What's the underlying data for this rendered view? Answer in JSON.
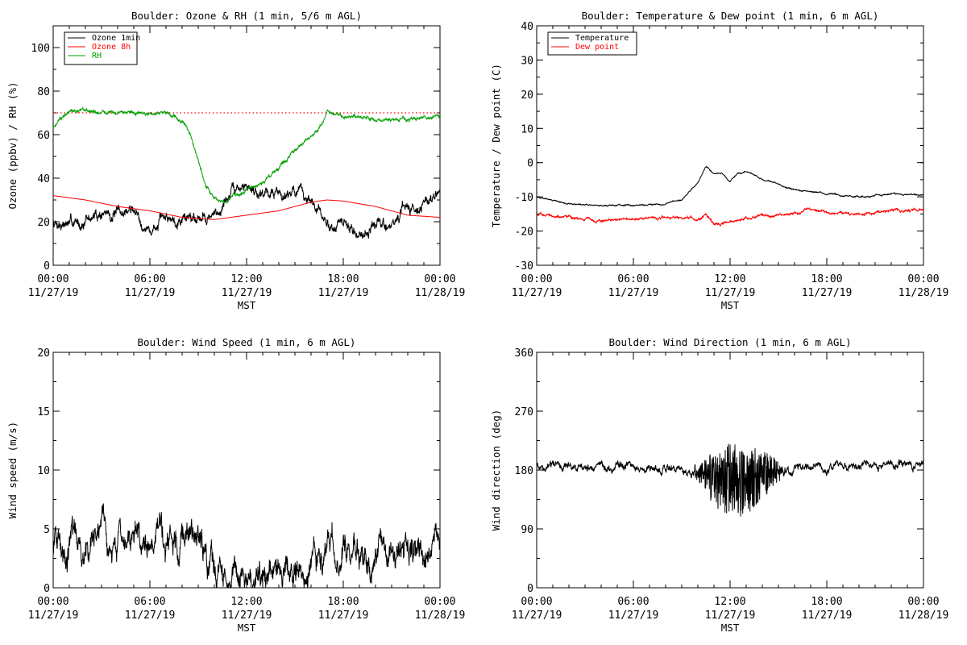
{
  "chart_data": [
    {
      "type": "line",
      "title": "Boulder: Ozone & RH (1 min, 5/6 m AGL)",
      "xlabel": "MST",
      "ylabel": "Ozone (ppbv) / RH (%)",
      "xlim": [
        "11/27/19 00:00",
        "11/28/19 00:00"
      ],
      "ylim": [
        0,
        110
      ],
      "yticks": [
        "0",
        "20",
        "40",
        "60",
        "80",
        "100"
      ],
      "xticks": [
        {
          "time": "00:00",
          "date": "11/27/19"
        },
        {
          "time": "06:00",
          "date": "11/27/19"
        },
        {
          "time": "12:00",
          "date": "11/27/19"
        },
        {
          "time": "18:00",
          "date": "11/27/19"
        },
        {
          "time": "00:00",
          "date": "11/28/19"
        }
      ],
      "legend_position": "top-left",
      "reference_line": {
        "y": 70,
        "style": "dotted",
        "color": "#ff0000"
      },
      "series": [
        {
          "name": "Ozone 1min",
          "color": "#000000",
          "noise": 2.5,
          "x": [
            "00:00",
            "01:00",
            "02:00",
            "03:00",
            "04:00",
            "05:00",
            "06:00",
            "07:00",
            "08:00",
            "09:00",
            "10:00",
            "11:00",
            "12:00",
            "13:00",
            "14:00",
            "15:00",
            "16:00",
            "17:00",
            "18:00",
            "19:00",
            "20:00",
            "21:00",
            "22:00",
            "23:00",
            "24:00"
          ],
          "y": [
            20,
            19,
            20,
            24,
            23,
            26,
            15,
            22,
            22,
            23,
            22,
            33,
            36,
            34,
            33,
            35,
            29,
            18,
            19,
            14,
            19,
            18,
            27,
            28,
            33
          ]
        },
        {
          "name": "Ozone 8h",
          "color": "#ff0000",
          "noise": 0,
          "x": [
            "00:00",
            "02:00",
            "04:00",
            "06:00",
            "08:00",
            "10:00",
            "12:00",
            "14:00",
            "16:00",
            "17:00",
            "18:00",
            "20:00",
            "22:00",
            "24:00"
          ],
          "y": [
            32,
            30,
            27,
            25,
            22,
            21,
            23,
            25,
            29,
            30,
            29.5,
            27,
            23,
            22
          ]
        },
        {
          "name": "RH",
          "color": "#00a000",
          "noise": 0.8,
          "x": [
            "00:00",
            "01:00",
            "02:00",
            "04:00",
            "06:00",
            "07:00",
            "07:30",
            "08:00",
            "08:30",
            "09:00",
            "09:30",
            "10:00",
            "10:30",
            "11:00",
            "11:30",
            "12:00",
            "13:00",
            "14:00",
            "15:00",
            "16:00",
            "16:30",
            "17:00",
            "18:00",
            "20:00",
            "22:00",
            "24:00"
          ],
          "y": [
            64,
            71,
            71,
            70,
            70,
            70,
            68,
            66,
            60,
            48,
            36,
            31,
            29,
            31,
            33,
            35,
            38,
            45,
            52,
            60,
            63,
            70,
            68,
            67,
            67,
            69
          ]
        }
      ]
    },
    {
      "type": "line",
      "title": "Boulder: Temperature & Dew point (1 min, 6 m AGL)",
      "xlabel": "MST",
      "ylabel": "Temperature / Dew point (C)",
      "xlim": [
        "11/27/19 00:00",
        "11/28/19 00:00"
      ],
      "ylim": [
        -30,
        40
      ],
      "yticks": [
        "-30",
        "-20",
        "-10",
        "0",
        "10",
        "20",
        "30",
        "40"
      ],
      "xticks": [
        {
          "time": "00:00",
          "date": "11/27/19"
        },
        {
          "time": "06:00",
          "date": "11/27/19"
        },
        {
          "time": "12:00",
          "date": "11/27/19"
        },
        {
          "time": "18:00",
          "date": "11/27/19"
        },
        {
          "time": "00:00",
          "date": "11/28/19"
        }
      ],
      "legend_position": "top-left",
      "series": [
        {
          "name": "Temperature",
          "color": "#000000",
          "noise": 0.2,
          "x": [
            "00:00",
            "01:00",
            "02:00",
            "04:00",
            "06:00",
            "08:00",
            "09:00",
            "10:00",
            "10:30",
            "11:00",
            "11:30",
            "12:00",
            "12:30",
            "13:00",
            "14:00",
            "16:00",
            "18:00",
            "20:00",
            "22:00",
            "24:00"
          ],
          "y": [
            -10,
            -11,
            -12,
            -12.5,
            -12.5,
            -12,
            -11,
            -6,
            -1,
            -3,
            -3,
            -5.5,
            -3,
            -2.5,
            -5,
            -8,
            -9,
            -10,
            -9,
            -9.5
          ]
        },
        {
          "name": "Dew point",
          "color": "#ff0000",
          "noise": 0.35,
          "x": [
            "00:00",
            "02:00",
            "04:00",
            "06:00",
            "08:00",
            "09:30",
            "10:00",
            "10:30",
            "11:00",
            "12:00",
            "13:00",
            "14:00",
            "16:00",
            "17:00",
            "18:00",
            "20:00",
            "22:00",
            "24:00"
          ],
          "y": [
            -15,
            -16,
            -17,
            -16.5,
            -16,
            -16,
            -17,
            -15,
            -17.5,
            -17.5,
            -16,
            -15.5,
            -15,
            -13.5,
            -14.5,
            -15,
            -14,
            -14
          ]
        }
      ]
    },
    {
      "type": "line",
      "title": "Boulder: Wind Speed (1 min, 6 m AGL)",
      "xlabel": "MST",
      "ylabel": "Wind speed (m/s)",
      "xlim": [
        "11/27/19 00:00",
        "11/28/19 00:00"
      ],
      "ylim": [
        0,
        20
      ],
      "yticks": [
        "0",
        "5",
        "10",
        "15",
        "20"
      ],
      "xticks": [
        {
          "time": "00:00",
          "date": "11/27/19"
        },
        {
          "time": "06:00",
          "date": "11/27/19"
        },
        {
          "time": "12:00",
          "date": "11/27/19"
        },
        {
          "time": "18:00",
          "date": "11/27/19"
        },
        {
          "time": "00:00",
          "date": "11/28/19"
        }
      ],
      "series": [
        {
          "name": "",
          "color": "#000000",
          "noise": 1.2,
          "x": [
            "00:00",
            "02:00",
            "04:00",
            "06:00",
            "07:00",
            "08:00",
            "08:40",
            "09:00",
            "09:30",
            "10:00",
            "12:00",
            "14:00",
            "15:00",
            "16:00",
            "17:00",
            "18:00",
            "19:00",
            "20:00",
            "21:00",
            "22:00",
            "24:00"
          ],
          "y": [
            3.5,
            3.8,
            3.8,
            4,
            3.8,
            4,
            4.6,
            3.5,
            2,
            1,
            0.8,
            0.8,
            1.2,
            1.8,
            3,
            3.2,
            3,
            2.2,
            3.2,
            3.3,
            3.2
          ]
        }
      ]
    },
    {
      "type": "line",
      "title": "Boulder: Wind Direction (1 min, 6 m AGL)",
      "xlabel": "MST",
      "ylabel": "Wind direction (deg)",
      "xlim": [
        "11/27/19 00:00",
        "11/28/19 00:00"
      ],
      "ylim": [
        0,
        360
      ],
      "yticks": [
        "0",
        "90",
        "180",
        "270",
        "360"
      ],
      "xticks": [
        {
          "time": "00:00",
          "date": "11/27/19"
        },
        {
          "time": "06:00",
          "date": "11/27/19"
        },
        {
          "time": "12:00",
          "date": "11/27/19"
        },
        {
          "time": "18:00",
          "date": "11/27/19"
        },
        {
          "time": "00:00",
          "date": "11/28/19"
        }
      ],
      "series": [
        {
          "name": "",
          "color": "#000000",
          "noise": 6,
          "volatile": {
            "from": "09:30",
            "to": "15:30",
            "amplitude": 55
          },
          "x": [
            "00:00",
            "02:00",
            "04:00",
            "06:00",
            "08:00",
            "09:00",
            "10:00",
            "12:00",
            "14:00",
            "15:30",
            "17:00",
            "20:00",
            "22:00",
            "24:00"
          ],
          "y": [
            185,
            185,
            185,
            185,
            182,
            180,
            175,
            170,
            170,
            178,
            185,
            188,
            186,
            187
          ]
        }
      ]
    }
  ]
}
